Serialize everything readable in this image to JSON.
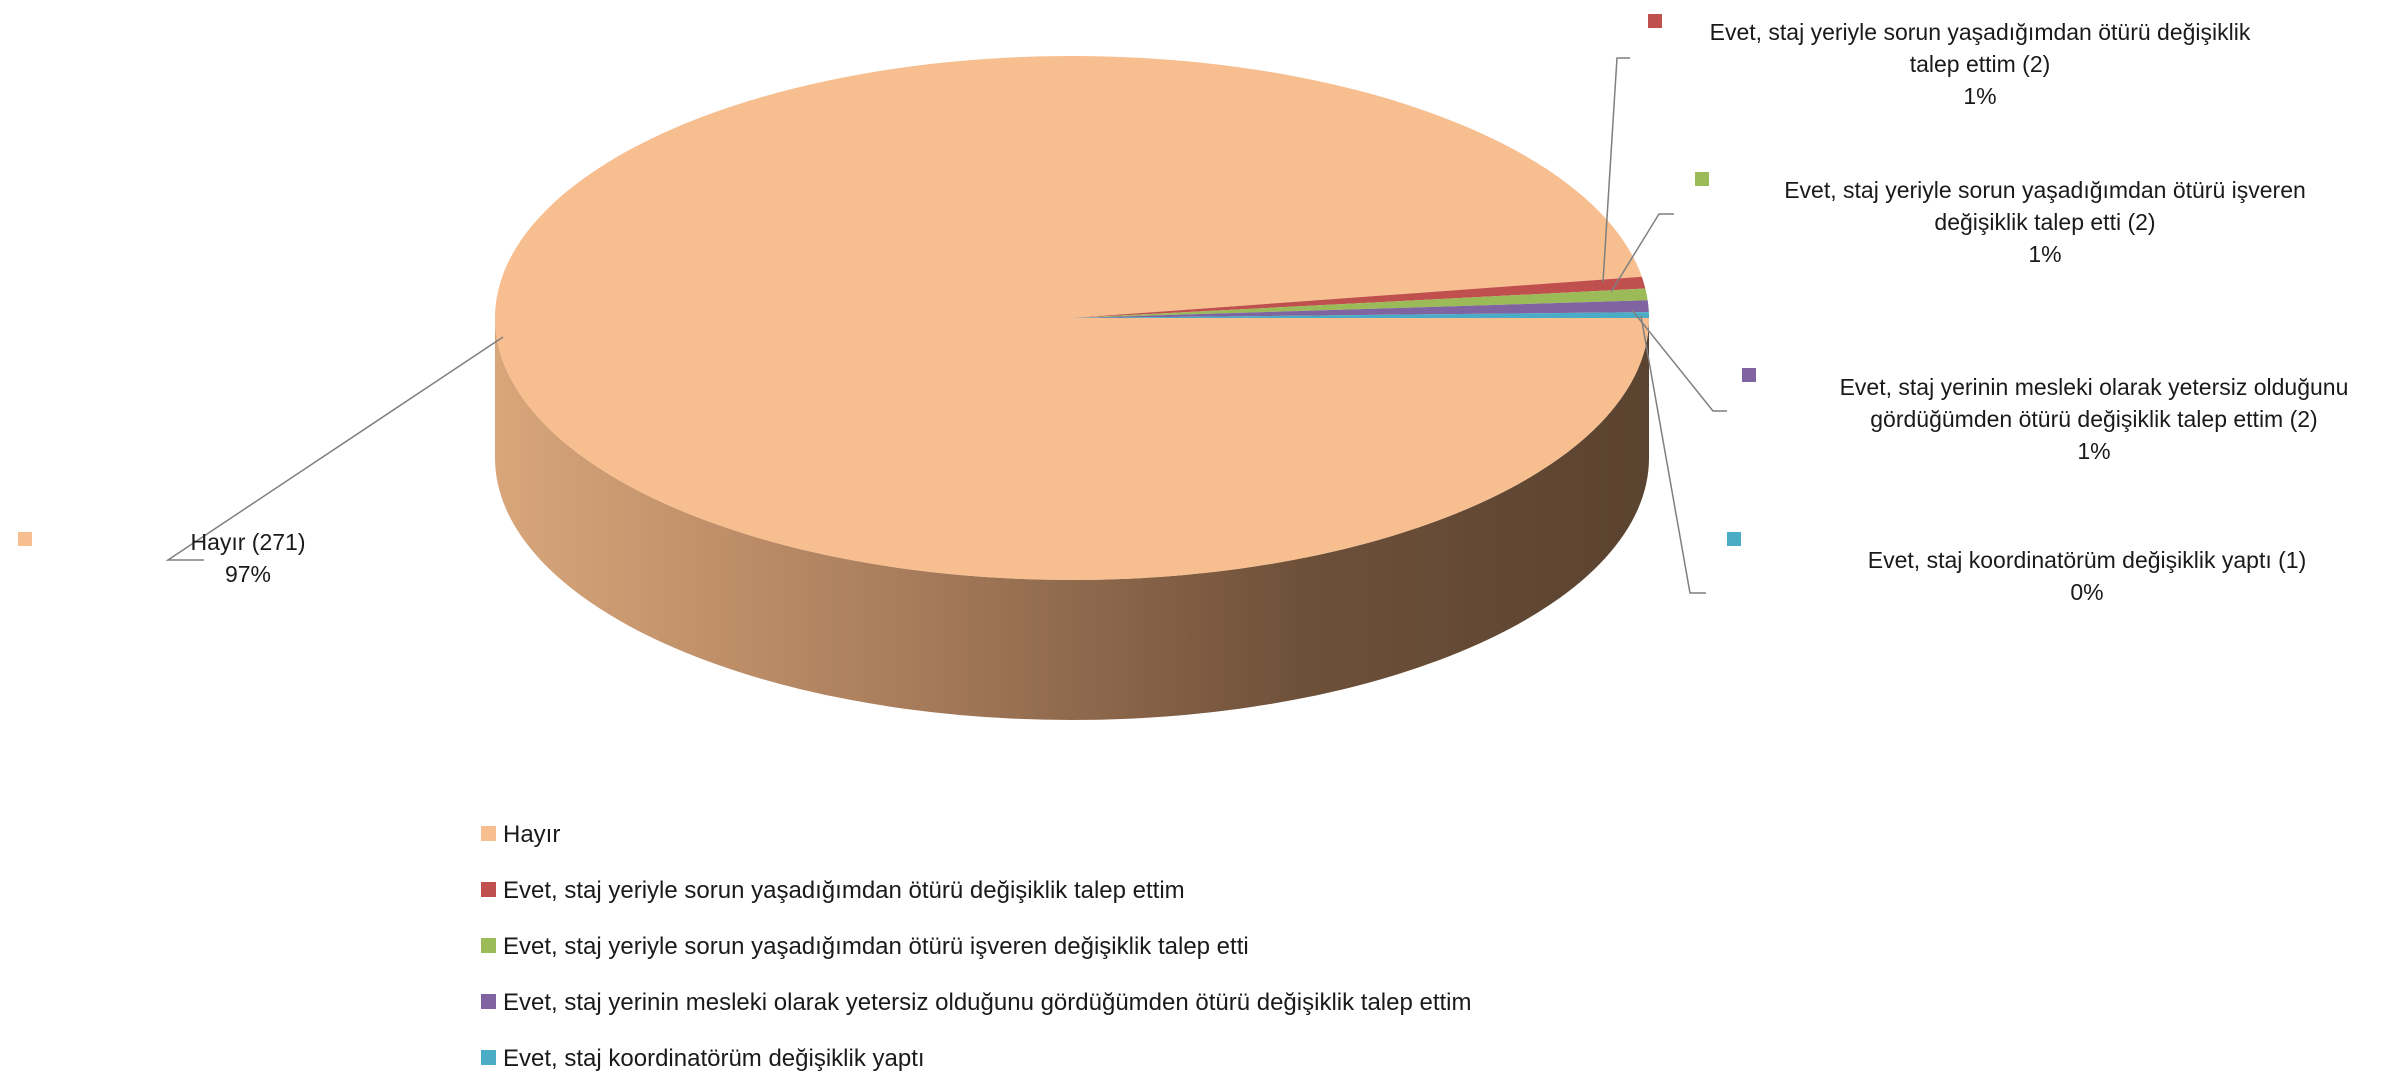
{
  "chart_data": {
    "type": "pie",
    "style": "3d",
    "categories": [
      "Hayır",
      "Evet, staj yeriyle sorun yaşadığımdan ötürü değişiklik talep ettim",
      "Evet, staj yeriyle sorun yaşadığımdan ötürü işveren değişiklik talep etti",
      "Evet, staj yerinin mesleki olarak yetersiz olduğunu gördüğümden ötürü değişiklik talep ettim",
      "Evet, staj koordinatörüm değişiklik yaptı"
    ],
    "values": [
      271,
      2,
      2,
      2,
      1
    ],
    "percent_labels": [
      "97%",
      "1%",
      "1%",
      "1%",
      "0%"
    ],
    "data_labels": [
      [
        "Hayır (271)",
        "97%"
      ],
      [
        "Evet, staj yeriyle sorun yaşadığımdan ötürü değişiklik",
        "talep ettim (2)",
        "1%"
      ],
      [
        "Evet, staj yeriyle sorun yaşadığımdan ötürü işveren",
        "değişiklik talep etti (2)",
        "1%"
      ],
      [
        "Evet, staj yerinin mesleki olarak yetersiz olduğunu",
        "gördüğümden ötürü değişiklik talep ettim (2)",
        "1%"
      ],
      [
        "Evet, staj koordinatörüm değişiklik yaptı (1)",
        "0%"
      ]
    ],
    "colors": [
      "#F7BE8F",
      "#C0504D",
      "#9BBB59",
      "#8064A2",
      "#4BACC6"
    ],
    "legend_placement": "bottom"
  }
}
